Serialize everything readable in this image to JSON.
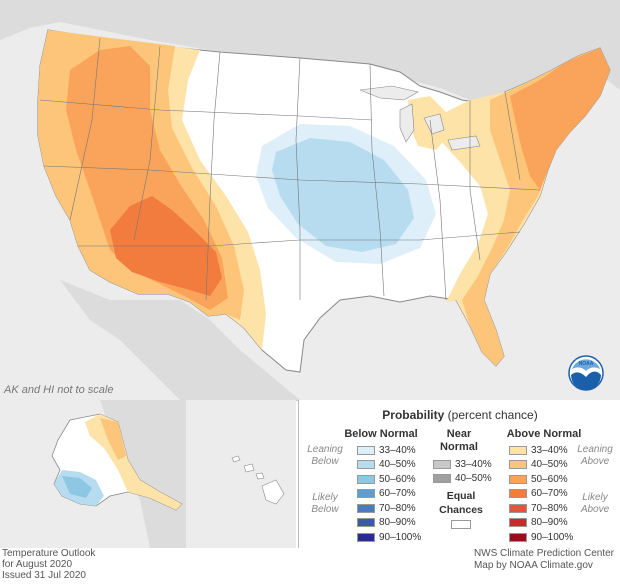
{
  "map": {
    "note": "AK and HI not to scale"
  },
  "legend": {
    "title_bold": "Probability",
    "title_rest": " (percent chance)",
    "below": {
      "heading": "Below Normal",
      "ranges": [
        "33–40%",
        "40–50%",
        "50–60%",
        "60–70%",
        "70–80%",
        "80–90%",
        "90–100%"
      ],
      "colors": [
        "#deeffa",
        "#b7dcef",
        "#8ec7e4",
        "#5b9fd4",
        "#4a7cbd",
        "#3d5aa8",
        "#2a2d8c"
      ]
    },
    "near": {
      "heading_line1": "Near",
      "heading_line2": "Normal",
      "ranges": [
        "33–40%",
        "40–50%"
      ],
      "colors": [
        "#c8c8c8",
        "#a0a0a0"
      ]
    },
    "above": {
      "heading": "Above Normal",
      "ranges": [
        "33–40%",
        "40–50%",
        "50–60%",
        "60–70%",
        "70–80%",
        "80–90%",
        "90–100%"
      ],
      "colors": [
        "#fde3a8",
        "#fcc57a",
        "#f9a45a",
        "#f27c3e",
        "#e8523a",
        "#cc2a2a",
        "#9b0d1a"
      ]
    },
    "equal": {
      "line1": "Equal",
      "line2": "Chances",
      "color": "#ffffff"
    },
    "side_labels": {
      "leaning_below_1": "Leaning",
      "leaning_below_2": "Below",
      "likely_below_1": "Likely",
      "likely_below_2": "Below",
      "leaning_above_1": "Leaning",
      "leaning_above_2": "Above",
      "likely_above_1": "Likely",
      "likely_above_2": "Above"
    }
  },
  "footer": {
    "left_line1": "Temperature Outlook",
    "left_line2": "for August 2020",
    "left_line3": "Issued 31 Jul 2020",
    "right_line1": "NWS Climate Prediction Center",
    "right_line2": "Map by NOAA Climate.gov"
  },
  "logo": {
    "text": "NOAA",
    "color": "#1b5faa"
  }
}
